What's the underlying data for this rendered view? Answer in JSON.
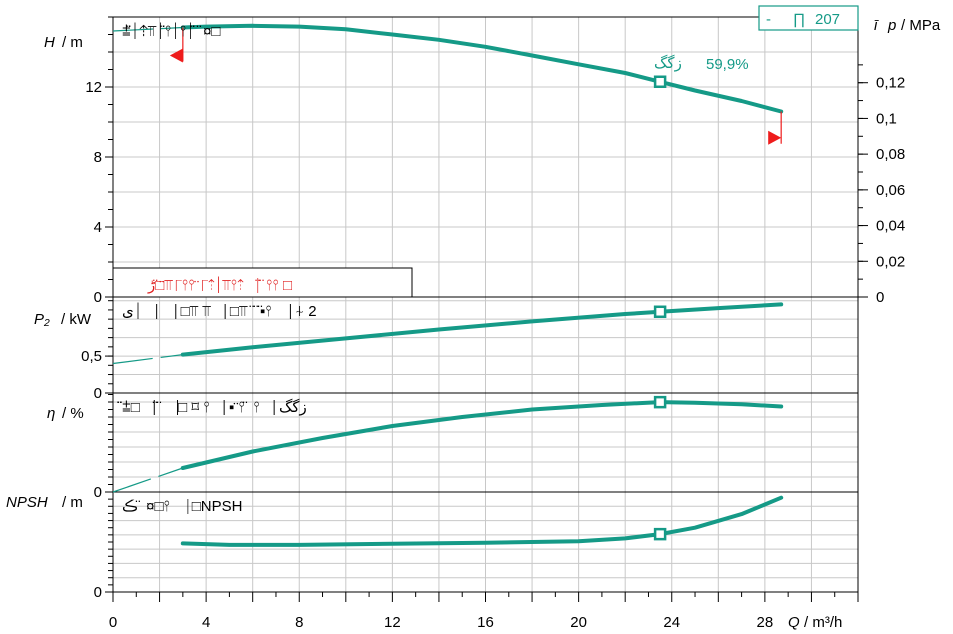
{
  "colors": {
    "curve": "#159a87",
    "grid": "#c8c8c8",
    "axis": "#000000",
    "marker_red": "#ee1c1c"
  },
  "chart_data": {
    "type": "line",
    "x_axis": {
      "label_var": "Q",
      "label_unit": "/ m³/h",
      "ticks": [
        "0",
        "4",
        "8",
        "12",
        "16",
        "20",
        "24",
        "28"
      ],
      "range": [
        0,
        32
      ]
    },
    "duty_point": {
      "q": 23.5,
      "efficiency_label": "59,9%",
      "legend_value": "207",
      "legend_symbol": "∏",
      "legend_dash": "-"
    },
    "panels": [
      {
        "id": "head",
        "y_label_var": "H",
        "y_label_unit": "/ m",
        "y_ticks": [
          "0",
          "4",
          "8",
          "12"
        ],
        "y_range": [
          0,
          16
        ],
        "right_label_var": "p",
        "right_label_unit": "/ MPa",
        "right_ticks": [
          "0",
          "0,02",
          "0,04",
          "0,06",
          "0,08",
          "0,1",
          "0,12"
        ],
        "curve_title": "⩲̈⏐⇡⫪⏐̈⫯⏐⫯⏐̈ ̈ ¤□",
        "note_text": "ڑ□̈⫪̈⎾⫯⫯ ⎾̈⇡⏐⫪⫯⇡⎹ ̈ ̈⫯⫯ □",
        "extension_left": [
          [
            0,
            15.2
          ],
          [
            3,
            15.4
          ]
        ],
        "curve": [
          [
            3,
            15.4
          ],
          [
            4,
            15.45
          ],
          [
            6,
            15.5
          ],
          [
            8,
            15.45
          ],
          [
            10,
            15.3
          ],
          [
            12,
            15.0
          ],
          [
            14,
            14.7
          ],
          [
            16,
            14.3
          ],
          [
            18,
            13.8
          ],
          [
            20,
            13.3
          ],
          [
            22,
            12.8
          ],
          [
            23.5,
            12.3
          ],
          [
            25,
            11.8
          ],
          [
            27,
            11.2
          ],
          [
            28.7,
            10.6
          ]
        ],
        "duty_value": 12.3,
        "min_flow_marker": {
          "q": 3,
          "h": 13.8
        },
        "max_flow_marker": {
          "q": 28.7,
          "h": 9.1
        }
      },
      {
        "id": "power",
        "y_label_var": "P₂",
        "y_label_unit": "/ kW",
        "y_ticks": [
          "0",
          "0,5"
        ],
        "y_range": [
          0,
          1.3
        ],
        "curve_title": "ی⏐⎹ ⎹ □⫪ ⫪⎹ □⫪ ̈ ̈ ̈▪⫯ ⎹ ⍭ 2",
        "extension_left": [
          [
            0,
            0.4
          ],
          [
            3,
            0.52
          ]
        ],
        "curve": [
          [
            3,
            0.52
          ],
          [
            6,
            0.62
          ],
          [
            10,
            0.74
          ],
          [
            14,
            0.86
          ],
          [
            18,
            0.97
          ],
          [
            22,
            1.07
          ],
          [
            23.5,
            1.1
          ],
          [
            26,
            1.15
          ],
          [
            28.7,
            1.2
          ]
        ],
        "duty_value": 1.1
      },
      {
        "id": "efficiency",
        "y_label_var": "η",
        "y_label_unit": "/ %",
        "y_ticks": [
          "0"
        ],
        "y_range": [
          0,
          66
        ],
        "curve_title": "⩲̈□⎹ ̈ ̈⎹□ ⌑ ⫯⎹ ▪ ⫯̈ ̈ ⫯⎹ زگگ",
        "extension_left": [
          [
            0,
            0
          ],
          [
            3,
            16
          ]
        ],
        "curve": [
          [
            3,
            16
          ],
          [
            6,
            27
          ],
          [
            9,
            36
          ],
          [
            12,
            44
          ],
          [
            15,
            50
          ],
          [
            18,
            55
          ],
          [
            21,
            58
          ],
          [
            23.5,
            59.9
          ],
          [
            25,
            59.5
          ],
          [
            27,
            58.5
          ],
          [
            28.7,
            57
          ]
        ],
        "duty_value": 59.9
      },
      {
        "id": "npsh",
        "y_label_var": "NPSH",
        "y_label_unit": "/ m",
        "y_ticks": [
          "0"
        ],
        "y_range": [
          0,
          14
        ],
        "curve_title": "ڪ ̈ ¤□⫯ ⎹ □NPSH",
        "curve": [
          [
            3,
            6.8
          ],
          [
            5,
            6.6
          ],
          [
            8,
            6.6
          ],
          [
            12,
            6.75
          ],
          [
            16,
            6.9
          ],
          [
            20,
            7.1
          ],
          [
            22,
            7.5
          ],
          [
            23.5,
            8.1
          ],
          [
            25,
            9.0
          ],
          [
            27,
            10.9
          ],
          [
            28.7,
            13.2
          ]
        ],
        "duty_value": 8.1
      }
    ]
  }
}
